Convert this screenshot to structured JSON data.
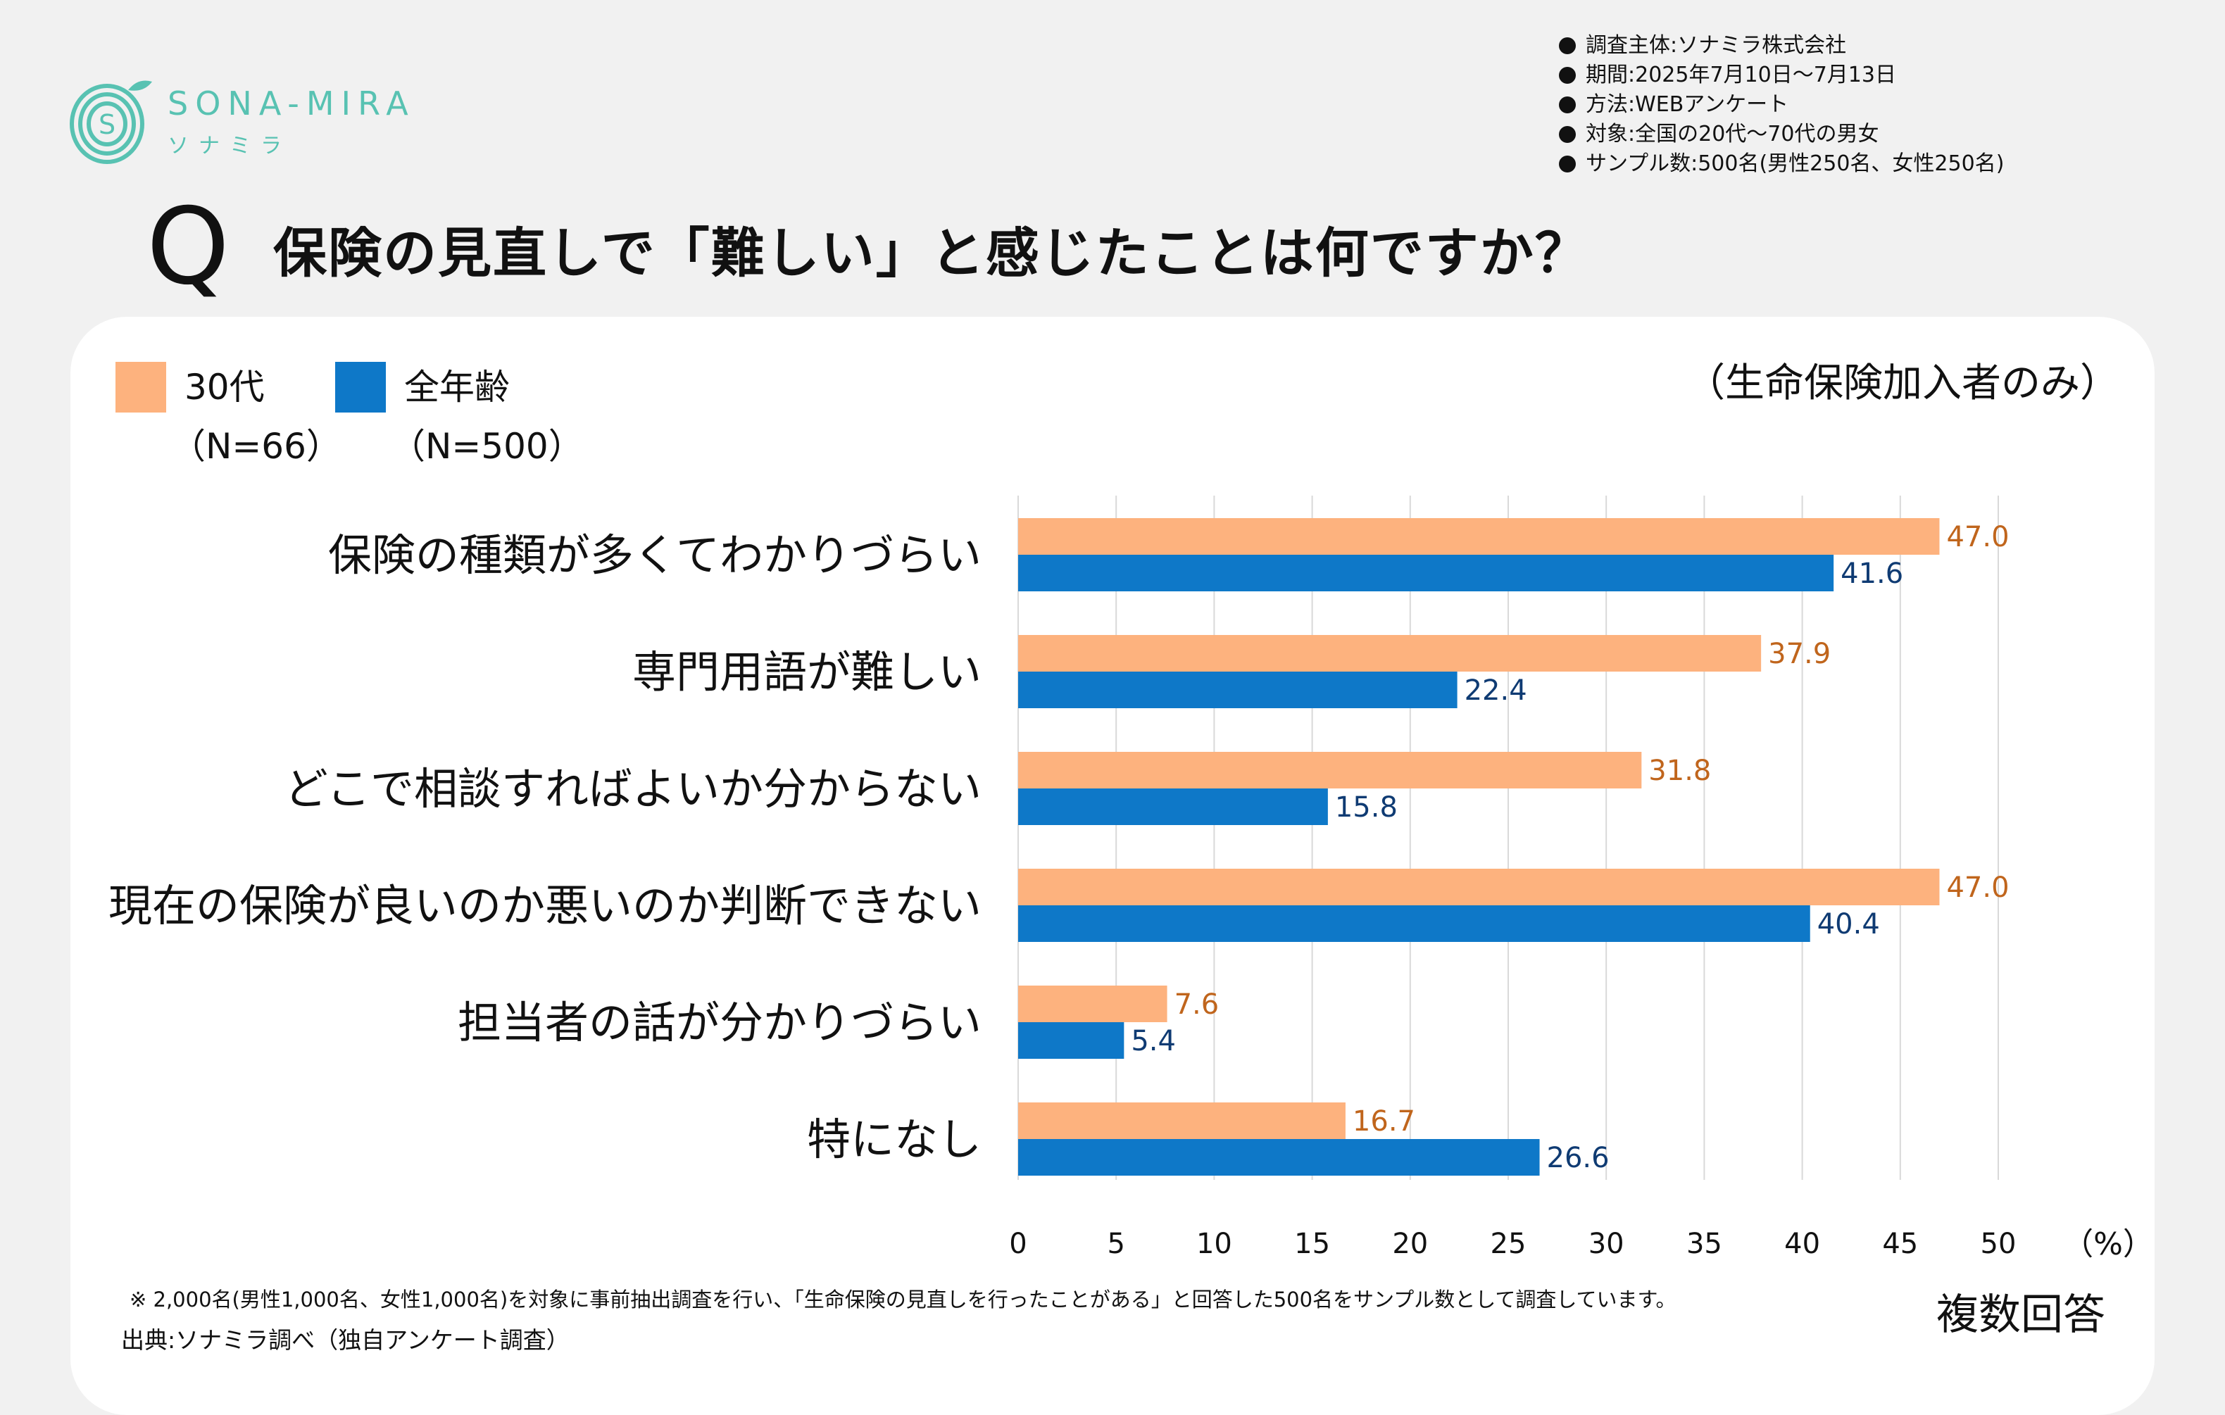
{
  "brand": {
    "name": "SONA-MIRA",
    "sub": "ソナミラ",
    "color": "#58c2b2"
  },
  "survey_info": [
    "調査主体:ソナミラ株式会社",
    "期間:2025年7月10日〜7月13日",
    "方法:WEBアンケート",
    "対象:全国の20代〜70代の男女",
    "サンプル数:500名(男性250名、女性250名)"
  ],
  "question_mark": "Q",
  "title": "保険の見直しで「難しい」と感じたことは何ですか？",
  "legend": {
    "a": {
      "label": "30代",
      "n": "（N=66）",
      "color": "#fdb27e"
    },
    "b": {
      "label": "全年齢",
      "n": "（N=500）",
      "color": "#0e78c8"
    }
  },
  "subset_note": "（生命保険加入者のみ）",
  "chart_data": {
    "type": "bar",
    "orientation": "horizontal",
    "categories": [
      "保険の種類が多くてわかりづらい",
      "専門用語が難しい",
      "どこで相談すればよいか分からない",
      "現在の保険が良いのか悪いのか判断できない",
      "担当者の話が分かりづらい",
      "特になし"
    ],
    "series": [
      {
        "name": "30代",
        "values": [
          47.0,
          37.9,
          31.8,
          47.0,
          7.6,
          16.7
        ],
        "color": "#fdb27e",
        "label_color": "#c0651c"
      },
      {
        "name": "全年齢",
        "values": [
          41.6,
          22.4,
          15.8,
          40.4,
          5.4,
          26.6
        ],
        "color": "#0e78c8",
        "label_color": "#0f3b73"
      }
    ],
    "xlim": [
      0,
      50
    ],
    "xticks": [
      0,
      5,
      10,
      15,
      20,
      25,
      30,
      35,
      40,
      45,
      50
    ],
    "xunit": "（%）",
    "grid": true
  },
  "footnote": "※ 2,000名(男性1,000名、女性1,000名)を対象に事前抽出調査を行い、「生命保険の見直しを行ったことがある」と回答した500名をサンプル数として調査しています。",
  "source": "出典:ソナミラ調べ（独自アンケート調査）",
  "multi_answer": "複数回答"
}
